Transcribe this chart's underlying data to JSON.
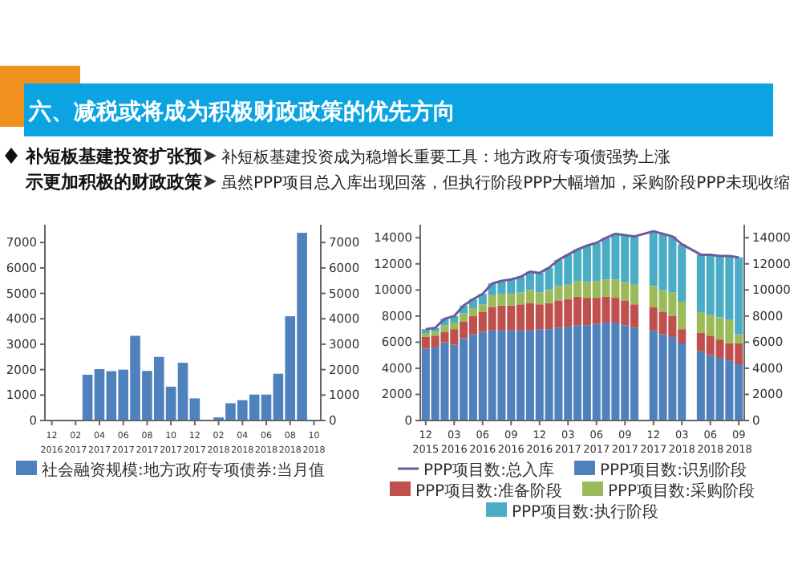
{
  "chart_data": [
    {
      "type": "other",
      "title": "六、减税或将成为积极财政政策的优先方向",
      "annotations": [
        "补短板基建投资扩张预示更加积极的财政政策",
        "补短板基建投资成为稳增长重要工具：地方政府专项债强势上涨",
        "虽然PPP项目总入库出现回落，但执行阶段PPP大幅增加，采购阶段PPP未现收缩"
      ]
    },
    {
      "type": "bar",
      "categories": [
        "12\n2016",
        null,
        "02\n2017",
        null,
        "04\n2017",
        null,
        "06\n2017",
        null,
        "08\n2017",
        null,
        "10\n2017",
        null,
        "12\n2017",
        null,
        "02\n2018",
        null,
        "04\n2018",
        null,
        "06\n2018",
        null,
        "08\n2018",
        null,
        "10\n2018"
      ],
      "series": [
        {
          "name": "社会融资规模:地方政府专项债券:当月值",
          "color": "#4f81bd",
          "values": [
            0,
            0,
            0,
            1800,
            2020,
            1940,
            2000,
            3330,
            1950,
            2500,
            1330,
            2270,
            870,
            0,
            120,
            680,
            800,
            1020,
            1020,
            1840,
            4100,
            7380,
            null
          ]
        }
      ],
      "ylim": [
        0,
        7700
      ],
      "yticks": [
        0,
        1000,
        2000,
        3000,
        4000,
        5000,
        6000,
        7000
      ],
      "y2lim": [
        0,
        7700
      ],
      "y2ticks": [
        0,
        1000,
        2000,
        3000,
        4000,
        5000,
        6000,
        7000
      ],
      "legend": "bottom"
    },
    {
      "type": "bar",
      "stacked": true,
      "categories": [
        "12\n2015",
        null,
        null,
        "03\n2016",
        null,
        null,
        "06\n2016",
        null,
        null,
        "09\n2016",
        null,
        null,
        "12\n2016",
        null,
        null,
        "03\n2017",
        null,
        null,
        "06\n2017",
        null,
        null,
        "09\n2017",
        null,
        null,
        "12\n2017",
        null,
        null,
        "03\n2018",
        null,
        null,
        "06\n2018",
        null,
        null,
        "09\n2018"
      ],
      "series": [
        {
          "name": "PPP项目数:总入库",
          "type": "line",
          "color": "#6b5b9a",
          "values": [
            7000,
            7100,
            7800,
            8000,
            8800,
            9300,
            9700,
            10500,
            10700,
            10800,
            11000,
            11400,
            11300,
            11700,
            12300,
            12700,
            13100,
            13400,
            13600,
            14000,
            14300,
            14200,
            14100,
            14300,
            14500,
            14300,
            14100,
            13500,
            13100,
            12700,
            12700,
            12600,
            12600,
            12500
          ]
        },
        {
          "name": "PPP项目数:识别阶段",
          "color": "#4f81bd",
          "values": [
            5500,
            5600,
            6000,
            5800,
            6300,
            6600,
            6800,
            6900,
            6900,
            6900,
            6900,
            6900,
            7000,
            7000,
            7100,
            7200,
            7300,
            7300,
            7400,
            7500,
            7500,
            7300,
            7100,
            null,
            6900,
            6600,
            6400,
            5900,
            null,
            5300,
            5000,
            4800,
            4600,
            4300
          ]
        },
        {
          "name": "PPP项目数:准备阶段",
          "color": "#c0504d",
          "values": [
            900,
            900,
            800,
            1200,
            1300,
            1400,
            1500,
            1800,
            1900,
            1900,
            2000,
            2100,
            1900,
            2000,
            2100,
            2100,
            2200,
            2100,
            2000,
            2000,
            1900,
            1900,
            1800,
            null,
            1800,
            1700,
            1600,
            1100,
            null,
            1400,
            1500,
            1400,
            1300,
            1600
          ]
        },
        {
          "name": "PPP项目数:采购阶段",
          "color": "#9bbb59",
          "values": [
            300,
            300,
            500,
            500,
            600,
            600,
            600,
            900,
            900,
            900,
            900,
            1000,
            900,
            1000,
            1100,
            1100,
            1200,
            1200,
            1300,
            1300,
            1400,
            1400,
            1500,
            null,
            1600,
            1700,
            1800,
            2100,
            null,
            1600,
            1600,
            1700,
            1800,
            700
          ]
        },
        {
          "name": "PPP项目数:执行阶段",
          "color": "#4bacc6",
          "values": [
            300,
            300,
            500,
            500,
            600,
            700,
            800,
            900,
            1000,
            1100,
            1200,
            1400,
            1500,
            1700,
            2000,
            2300,
            2400,
            2800,
            2900,
            3200,
            3500,
            3600,
            3700,
            null,
            4200,
            4300,
            4300,
            4400,
            null,
            4400,
            4600,
            4700,
            4900,
            5900
          ]
        }
      ],
      "ylim": [
        0,
        15000
      ],
      "yticks": [
        0,
        2000,
        4000,
        6000,
        8000,
        10000,
        12000,
        14000
      ],
      "y2lim": [
        0,
        15000
      ],
      "y2ticks": [
        0,
        2000,
        4000,
        6000,
        8000,
        10000,
        12000,
        14000
      ],
      "legend": "bottom"
    }
  ]
}
